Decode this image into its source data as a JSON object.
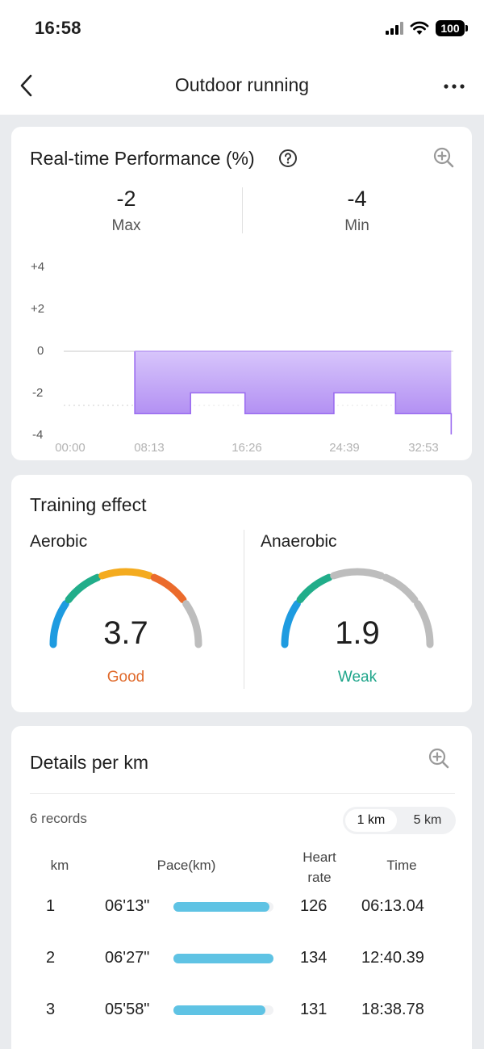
{
  "status_bar": {
    "time": "16:58",
    "battery": "100"
  },
  "nav": {
    "title": "Outdoor running"
  },
  "performance": {
    "title": "Real-time Performance (%)",
    "max_value": "-2",
    "max_label": "Max",
    "min_value": "-4",
    "min_label": "Min",
    "chart_data": {
      "type": "area",
      "y_ticks": [
        "+4",
        "+2",
        "0",
        "-2",
        "-4"
      ],
      "x_ticks": [
        "00:00",
        "08:13",
        "16:26",
        "24:39",
        "32:53"
      ],
      "ylim": [
        -4,
        4
      ],
      "xlim_minutes": [
        0,
        32.88
      ],
      "series": [
        {
          "x_minutes": [
            6.0,
            10.7,
            10.7,
            15.3,
            15.3,
            22.8,
            22.8,
            28.0,
            28.0,
            32.7,
            32.7
          ],
          "values": [
            -3,
            -3,
            -2,
            -2,
            -3,
            -3,
            -2,
            -2,
            -3,
            -3,
            -4
          ]
        }
      ],
      "color": "#a77ff0"
    }
  },
  "training": {
    "title": "Training effect",
    "aerobic": {
      "label": "Aerobic",
      "value": "3.7",
      "rating": "Good",
      "rating_color": "#e06a2c",
      "level": 3.7
    },
    "anaerobic": {
      "label": "Anaerobic",
      "value": "1.9",
      "rating": "Weak",
      "rating_color": "#1ea58a",
      "level": 1.9
    }
  },
  "details": {
    "title": "Details per km",
    "records": "6 records",
    "seg_1km": "1 km",
    "seg_5km": "5 km",
    "headers": {
      "km": "km",
      "pace": "Pace(km)",
      "heart_rate": "Heart rate",
      "time": "Time"
    },
    "rows": [
      {
        "km": "1",
        "pace": "06'13\"",
        "pace_fraction": 0.96,
        "heart_rate": "126",
        "time": "06:13.04"
      },
      {
        "km": "2",
        "pace": "06'27\"",
        "pace_fraction": 1.0,
        "heart_rate": "134",
        "time": "12:40.39"
      },
      {
        "km": "3",
        "pace": "05'58\"",
        "pace_fraction": 0.92,
        "heart_rate": "131",
        "time": "18:38.78"
      }
    ]
  }
}
